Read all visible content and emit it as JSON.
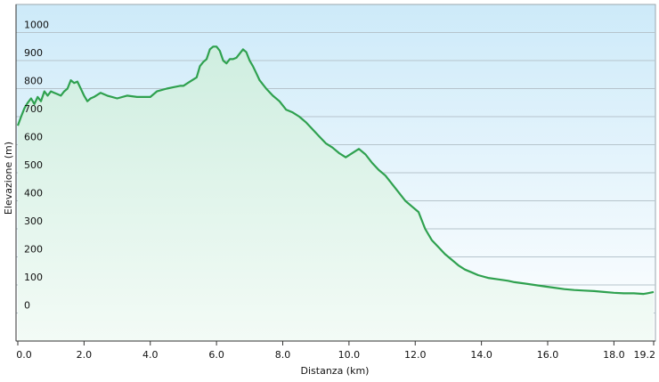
{
  "chart_data": {
    "type": "area",
    "xlabel": "Distanza  (km)",
    "ylabel": "Elevazione (m)",
    "x_ticks": [
      0.0,
      2.0,
      4.0,
      6.0,
      8.0,
      10.0,
      12.0,
      14.0,
      16.0,
      18.0,
      19.2
    ],
    "x_tick_labels": [
      "0.0",
      "2.0",
      "4.0",
      "6.0",
      "8.0",
      "10.0",
      "12.0",
      "14.0",
      "16.0",
      "18.0",
      "19.2"
    ],
    "y_ticks": [
      0,
      100,
      200,
      300,
      400,
      500,
      600,
      700,
      800,
      900,
      1000
    ],
    "y_tick_labels": [
      "0",
      "100",
      "200",
      "300",
      "400",
      "500",
      "600",
      "700",
      "800",
      "900",
      "1000"
    ],
    "xlim": [
      0,
      19.2
    ],
    "ylim": [
      -100,
      1100
    ],
    "grid": true,
    "series": [
      {
        "x": [
          0.0,
          0.1,
          0.2,
          0.3,
          0.4,
          0.5,
          0.6,
          0.7,
          0.8,
          0.9,
          1.0,
          1.1,
          1.2,
          1.3,
          1.4,
          1.5,
          1.6,
          1.7,
          1.8,
          1.9,
          2.0,
          2.1,
          2.2,
          2.3,
          2.5,
          2.7,
          3.0,
          3.3,
          3.6,
          4.0,
          4.2,
          4.5,
          4.7,
          4.9,
          5.0,
          5.2,
          5.4,
          5.5,
          5.6,
          5.7,
          5.8,
          5.9,
          6.0,
          6.1,
          6.2,
          6.3,
          6.4,
          6.5,
          6.6,
          6.8,
          6.9,
          7.0,
          7.1,
          7.2,
          7.3,
          7.5,
          7.7,
          7.9,
          8.1,
          8.3,
          8.5,
          8.7,
          8.9,
          9.1,
          9.3,
          9.5,
          9.7,
          9.9,
          10.1,
          10.3,
          10.5,
          10.7,
          10.9,
          11.1,
          11.3,
          11.5,
          11.7,
          11.9,
          12.1,
          12.3,
          12.5,
          12.7,
          12.9,
          13.1,
          13.3,
          13.5,
          13.7,
          13.9,
          14.2,
          14.5,
          14.8,
          15.0,
          15.3,
          15.6,
          15.9,
          16.2,
          16.5,
          16.8,
          17.1,
          17.4,
          17.7,
          18.0,
          18.3,
          18.6,
          18.9,
          19.0,
          19.2
        ],
        "values": [
          668,
          700,
          730,
          750,
          765,
          745,
          770,
          755,
          790,
          775,
          790,
          785,
          780,
          775,
          790,
          800,
          830,
          820,
          825,
          800,
          775,
          755,
          765,
          770,
          785,
          775,
          765,
          775,
          770,
          770,
          790,
          800,
          805,
          810,
          810,
          825,
          840,
          880,
          895,
          905,
          940,
          950,
          950,
          935,
          900,
          890,
          905,
          905,
          910,
          940,
          930,
          900,
          880,
          855,
          830,
          800,
          775,
          755,
          725,
          715,
          700,
          680,
          655,
          630,
          605,
          590,
          570,
          555,
          570,
          585,
          565,
          535,
          510,
          490,
          460,
          430,
          400,
          380,
          360,
          300,
          260,
          235,
          210,
          190,
          170,
          155,
          145,
          135,
          125,
          120,
          115,
          110,
          105,
          100,
          95,
          90,
          85,
          82,
          80,
          78,
          75,
          72,
          70,
          70,
          68,
          70,
          75
        ]
      }
    ]
  }
}
